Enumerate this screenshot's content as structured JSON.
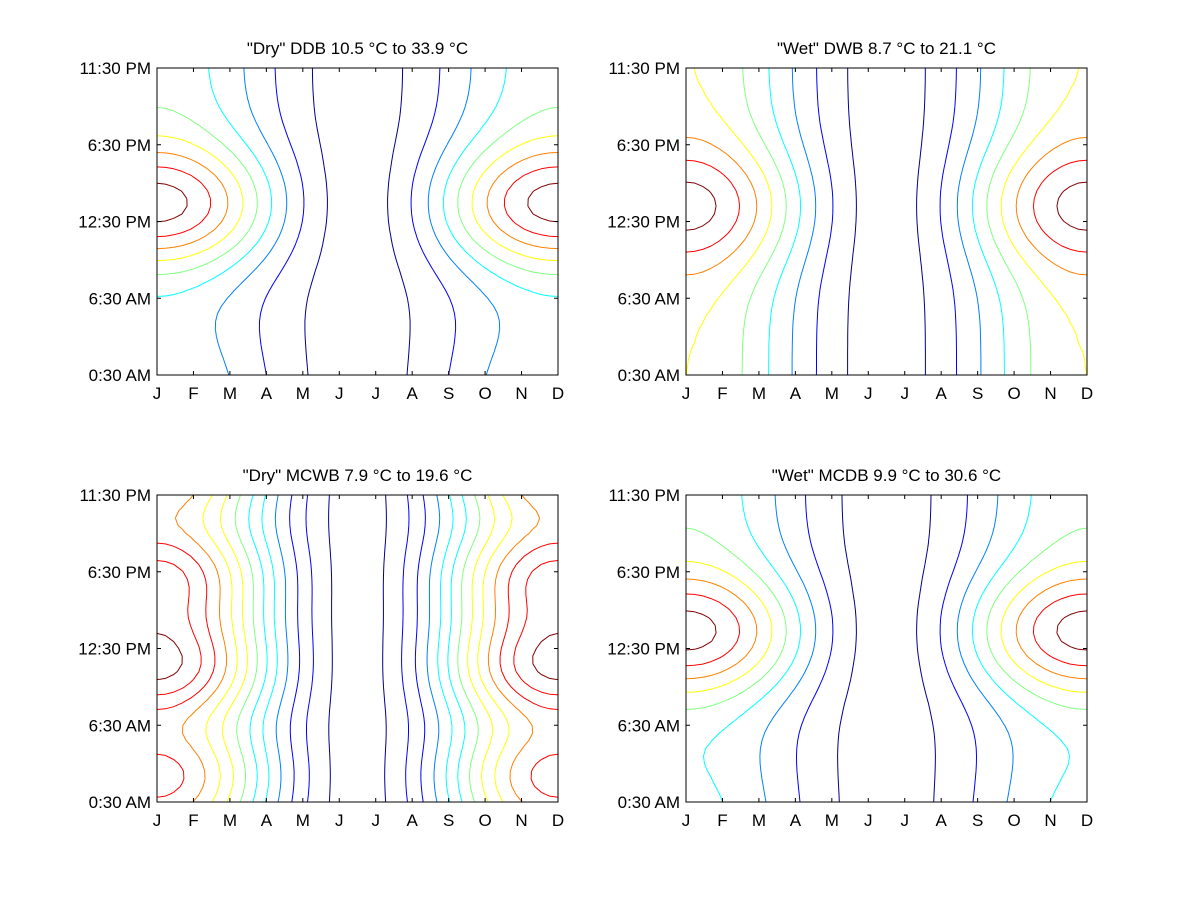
{
  "figure": {
    "background": "#ffffff",
    "colormap": [
      "#00008f",
      "#0000ff",
      "#0080ff",
      "#00ffff",
      "#80ff80",
      "#ffff00",
      "#ff8000",
      "#ff0000",
      "#800000"
    ]
  },
  "chart_data": [
    {
      "type": "contour",
      "title": "\"Dry\" DDB  10.5 °C to  33.9 °C",
      "xlabel": "",
      "ylabel": "",
      "x_ticks": [
        "J",
        "F",
        "M",
        "A",
        "M",
        "J",
        "J",
        "A",
        "S",
        "O",
        "N",
        "D"
      ],
      "y_ticks": [
        "0:30 AM",
        "6:30 AM",
        "12:30 PM",
        "6:30 PM",
        "11:30 PM"
      ],
      "value_range": [
        10.5,
        33.9
      ],
      "units": "°C",
      "levels": 9,
      "grid": false
    },
    {
      "type": "contour",
      "title": "\"Wet\" DWB   8.7 °C to  21.1 °C",
      "xlabel": "",
      "ylabel": "",
      "x_ticks": [
        "J",
        "F",
        "M",
        "A",
        "M",
        "J",
        "J",
        "A",
        "S",
        "O",
        "N",
        "D"
      ],
      "y_ticks": [
        "0:30 AM",
        "6:30 AM",
        "12:30 PM",
        "6:30 PM",
        "11:30 PM"
      ],
      "value_range": [
        8.7,
        21.1
      ],
      "units": "°C",
      "levels": 9,
      "grid": false
    },
    {
      "type": "contour",
      "title": "\"Dry\" MCWB   7.9 °C to  19.6 °C",
      "xlabel": "",
      "ylabel": "",
      "x_ticks": [
        "J",
        "F",
        "M",
        "A",
        "M",
        "J",
        "J",
        "A",
        "S",
        "O",
        "N",
        "D"
      ],
      "y_ticks": [
        "0:30 AM",
        "6:30 AM",
        "12:30 PM",
        "6:30 PM",
        "11:30 PM"
      ],
      "value_range": [
        7.9,
        19.6
      ],
      "units": "°C",
      "levels": 13,
      "grid": false
    },
    {
      "type": "contour",
      "title": "\"Wet\" MCDB   9.9 °C to  30.6 °C",
      "xlabel": "",
      "ylabel": "",
      "x_ticks": [
        "J",
        "F",
        "M",
        "A",
        "M",
        "J",
        "J",
        "A",
        "S",
        "O",
        "N",
        "D"
      ],
      "y_ticks": [
        "0:30 AM",
        "6:30 AM",
        "12:30 PM",
        "6:30 PM",
        "11:30 PM"
      ],
      "value_range": [
        9.9,
        30.6
      ],
      "units": "°C",
      "levels": 9,
      "grid": false
    }
  ]
}
